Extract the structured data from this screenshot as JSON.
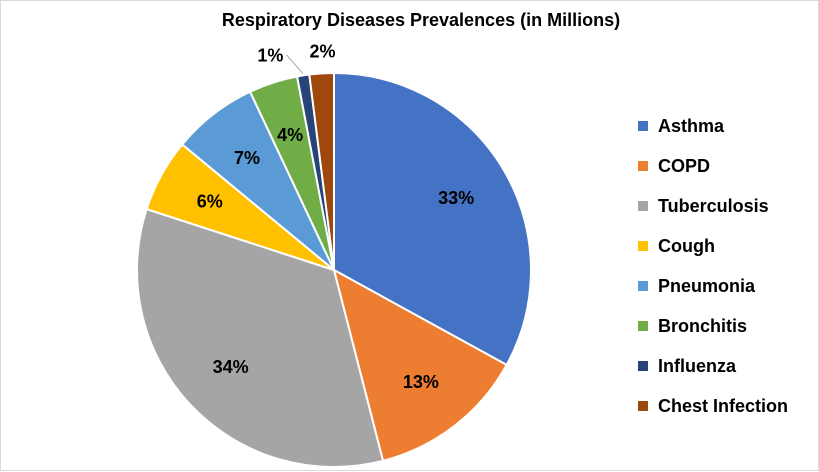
{
  "chart_data": {
    "type": "pie",
    "title": "Respiratory Diseases Prevalences (in Millions)",
    "legend_position": "right",
    "series": [
      {
        "name": "Asthma",
        "value": 33,
        "label": "33%",
        "color": "#4472C4"
      },
      {
        "name": "COPD",
        "value": 13,
        "label": "13%",
        "color": "#ED7D31"
      },
      {
        "name": "Tuberculosis",
        "value": 34,
        "label": "34%",
        "color": "#A5A5A5"
      },
      {
        "name": "Cough",
        "value": 6,
        "label": "6%",
        "color": "#FFC000"
      },
      {
        "name": "Pneumonia",
        "value": 7,
        "label": "7%",
        "color": "#5B9BD5"
      },
      {
        "name": "Bronchitis",
        "value": 4,
        "label": "4%",
        "color": "#70AD47"
      },
      {
        "name": "Influenza",
        "value": 1,
        "label": "1%",
        "color": "#264478"
      },
      {
        "name": "Chest Infection",
        "value": 2,
        "label": "2%",
        "color": "#9E480E"
      }
    ]
  }
}
